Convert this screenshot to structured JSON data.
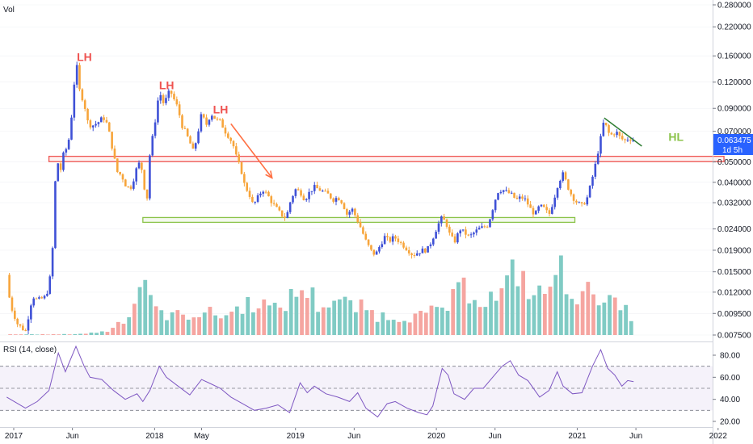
{
  "chart_data": {
    "type": "candlestick",
    "scale": "log",
    "vol_label": "Vol",
    "rsi_label": "RSI (14, close)",
    "last_price_badge": {
      "price": "0.063475",
      "countdown": "1d 5h",
      "color": "#2962ff"
    },
    "price_ticks": [
      "0.280000",
      "0.220000",
      "0.160000",
      "0.120000",
      "0.090000",
      "0.070000",
      "0.050000",
      "0.040000",
      "0.032000",
      "0.024000",
      "0.019000",
      "0.015000",
      "0.012000",
      "0.009500",
      "0.007500"
    ],
    "price_tick_values": [
      0.28,
      0.22,
      0.16,
      0.12,
      0.09,
      0.07,
      0.05,
      0.04,
      0.032,
      0.024,
      0.019,
      0.015,
      0.012,
      0.0095,
      0.0075
    ],
    "rsi_ticks": [
      "80.00",
      "60.00",
      "40.00",
      "20.00"
    ],
    "rsi_tick_values": [
      80,
      60,
      40,
      20
    ],
    "rsi_band": {
      "upper": 70,
      "lower": 30,
      "mid": 50
    },
    "time_labels": [
      {
        "label": "2017",
        "t": 0
      },
      {
        "label": "Jun",
        "t": 5
      },
      {
        "label": "2018",
        "t": 12
      },
      {
        "label": "May",
        "t": 16
      },
      {
        "label": "2019",
        "t": 24
      },
      {
        "label": "Jun",
        "t": 29
      },
      {
        "label": "2020",
        "t": 36
      },
      {
        "label": "Jun",
        "t": 41
      },
      {
        "label": "2021",
        "t": 48
      },
      {
        "label": "Jun",
        "t": 53
      },
      {
        "label": "2022",
        "t": 60
      }
    ],
    "price_path": [
      [
        -0.6,
        0.0145
      ],
      [
        -0.3,
        0.0105
      ],
      [
        0.3,
        0.0085
      ],
      [
        1.0,
        0.0078
      ],
      [
        1.6,
        0.0115
      ],
      [
        2.0,
        0.011
      ],
      [
        2.6,
        0.0113
      ],
      [
        3.0,
        0.0125
      ],
      [
        3.4,
        0.022
      ],
      [
        3.6,
        0.052
      ],
      [
        4.0,
        0.046
      ],
      [
        4.3,
        0.057
      ],
      [
        4.6,
        0.058
      ],
      [
        5.0,
        0.09
      ],
      [
        5.3,
        0.155
      ],
      [
        5.6,
        0.11
      ],
      [
        6.0,
        0.095
      ],
      [
        6.3,
        0.078
      ],
      [
        6.6,
        0.074
      ],
      [
        7.0,
        0.076
      ],
      [
        7.3,
        0.078
      ],
      [
        7.6,
        0.082
      ],
      [
        8.0,
        0.075
      ],
      [
        8.4,
        0.058
      ],
      [
        8.8,
        0.045
      ],
      [
        9.2,
        0.043
      ],
      [
        9.6,
        0.038
      ],
      [
        10.0,
        0.038
      ],
      [
        10.3,
        0.043
      ],
      [
        10.6,
        0.05
      ],
      [
        11.0,
        0.045
      ],
      [
        11.3,
        0.03
      ],
      [
        11.6,
        0.055
      ],
      [
        12.0,
        0.075
      ],
      [
        12.4,
        0.11
      ],
      [
        12.7,
        0.095
      ],
      [
        13.0,
        0.1
      ],
      [
        13.3,
        0.11
      ],
      [
        13.7,
        0.098
      ],
      [
        14.0,
        0.09
      ],
      [
        14.3,
        0.075
      ],
      [
        14.6,
        0.07
      ],
      [
        15.0,
        0.062
      ],
      [
        15.3,
        0.056
      ],
      [
        15.6,
        0.065
      ],
      [
        16.0,
        0.085
      ],
      [
        16.4,
        0.075
      ],
      [
        16.8,
        0.085
      ],
      [
        17.2,
        0.08
      ],
      [
        17.6,
        0.078
      ],
      [
        18.0,
        0.07
      ],
      [
        18.4,
        0.065
      ],
      [
        18.7,
        0.06
      ],
      [
        19.0,
        0.052
      ],
      [
        19.4,
        0.045
      ],
      [
        19.7,
        0.038
      ],
      [
        20.0,
        0.036
      ],
      [
        20.4,
        0.031
      ],
      [
        20.8,
        0.034
      ],
      [
        21.2,
        0.037
      ],
      [
        21.6,
        0.035
      ],
      [
        22.0,
        0.032
      ],
      [
        22.4,
        0.03
      ],
      [
        22.8,
        0.028
      ],
      [
        23.2,
        0.027
      ],
      [
        23.6,
        0.033
      ],
      [
        24.0,
        0.037
      ],
      [
        24.4,
        0.036
      ],
      [
        24.8,
        0.033
      ],
      [
        25.2,
        0.036
      ],
      [
        25.6,
        0.038
      ],
      [
        26.0,
        0.037
      ],
      [
        26.4,
        0.036
      ],
      [
        26.8,
        0.035
      ],
      [
        27.2,
        0.033
      ],
      [
        27.6,
        0.034
      ],
      [
        28.0,
        0.032
      ],
      [
        28.4,
        0.028
      ],
      [
        28.8,
        0.03
      ],
      [
        29.2,
        0.027
      ],
      [
        29.6,
        0.024
      ],
      [
        30.0,
        0.021
      ],
      [
        30.4,
        0.019
      ],
      [
        30.8,
        0.018
      ],
      [
        31.2,
        0.02
      ],
      [
        31.6,
        0.022
      ],
      [
        32.0,
        0.021
      ],
      [
        32.4,
        0.022
      ],
      [
        32.8,
        0.021
      ],
      [
        33.2,
        0.02
      ],
      [
        33.6,
        0.019
      ],
      [
        34.0,
        0.018
      ],
      [
        34.4,
        0.0185
      ],
      [
        34.8,
        0.019
      ],
      [
        35.2,
        0.019
      ],
      [
        35.6,
        0.021
      ],
      [
        36.0,
        0.024
      ],
      [
        36.4,
        0.027
      ],
      [
        36.8,
        0.026
      ],
      [
        37.2,
        0.022
      ],
      [
        37.6,
        0.021
      ],
      [
        38.0,
        0.024
      ],
      [
        38.4,
        0.023
      ],
      [
        38.8,
        0.022
      ],
      [
        39.2,
        0.023
      ],
      [
        39.6,
        0.024
      ],
      [
        40.0,
        0.0245
      ],
      [
        40.4,
        0.025
      ],
      [
        40.8,
        0.03
      ],
      [
        41.2,
        0.036
      ],
      [
        41.6,
        0.037
      ],
      [
        42.0,
        0.036
      ],
      [
        42.4,
        0.035
      ],
      [
        42.8,
        0.033
      ],
      [
        43.2,
        0.034
      ],
      [
        43.6,
        0.033
      ],
      [
        44.0,
        0.03
      ],
      [
        44.4,
        0.028
      ],
      [
        44.8,
        0.031
      ],
      [
        45.2,
        0.03
      ],
      [
        45.6,
        0.028
      ],
      [
        46.0,
        0.033
      ],
      [
        46.4,
        0.04
      ],
      [
        46.8,
        0.044
      ],
      [
        47.2,
        0.038
      ],
      [
        47.6,
        0.034
      ],
      [
        48.0,
        0.032
      ],
      [
        48.4,
        0.031
      ],
      [
        48.8,
        0.033
      ],
      [
        49.2,
        0.04
      ],
      [
        49.6,
        0.05
      ],
      [
        50.0,
        0.065
      ],
      [
        50.3,
        0.08
      ],
      [
        50.6,
        0.069
      ],
      [
        51.0,
        0.067
      ],
      [
        51.3,
        0.07
      ],
      [
        51.6,
        0.066
      ],
      [
        52.0,
        0.063
      ],
      [
        52.4,
        0.065
      ],
      [
        52.8,
        0.0635
      ]
    ],
    "volume_path": [
      [
        -0.3,
        0.01
      ],
      [
        4.0,
        0.01
      ],
      [
        6.0,
        0.02
      ],
      [
        8.0,
        0.06
      ],
      [
        9.0,
        0.2
      ],
      [
        10.0,
        0.35
      ],
      [
        11.2,
        1.0
      ],
      [
        12.0,
        0.35
      ],
      [
        14.0,
        0.3
      ],
      [
        16.0,
        0.35
      ],
      [
        18.0,
        0.3
      ],
      [
        19.5,
        0.45
      ],
      [
        21.0,
        0.55
      ],
      [
        22.0,
        0.35
      ],
      [
        23.5,
        0.55
      ],
      [
        24.8,
        0.75
      ],
      [
        26.0,
        0.45
      ],
      [
        27.5,
        0.55
      ],
      [
        28.5,
        0.45
      ],
      [
        30.0,
        0.4
      ],
      [
        31.0,
        0.3
      ],
      [
        33.0,
        0.28
      ],
      [
        35.0,
        0.3
      ],
      [
        37.0,
        0.45
      ],
      [
        38.5,
        0.75
      ],
      [
        40.0,
        0.55
      ],
      [
        41.5,
        0.6
      ],
      [
        42.3,
        0.85
      ],
      [
        42.9,
        1.05
      ],
      [
        43.4,
        0.85
      ],
      [
        44.5,
        0.55
      ],
      [
        45.5,
        0.75
      ],
      [
        46.8,
        1.0
      ],
      [
        47.4,
        0.75
      ],
      [
        48.5,
        0.55
      ],
      [
        49.5,
        0.75
      ],
      [
        50.5,
        0.55
      ],
      [
        51.5,
        0.4
      ],
      [
        52.8,
        0.3
      ]
    ],
    "rsi_values": [
      [
        -0.6,
        42
      ],
      [
        1.0,
        32
      ],
      [
        2.0,
        38
      ],
      [
        3.0,
        48
      ],
      [
        3.8,
        82
      ],
      [
        4.4,
        65
      ],
      [
        5.3,
        88
      ],
      [
        6.0,
        70
      ],
      [
        6.5,
        60
      ],
      [
        7.5,
        58
      ],
      [
        8.5,
        48
      ],
      [
        9.5,
        40
      ],
      [
        10.5,
        45
      ],
      [
        11.0,
        38
      ],
      [
        11.6,
        48
      ],
      [
        12.4,
        70
      ],
      [
        13.0,
        60
      ],
      [
        14.0,
        52
      ],
      [
        15.0,
        44
      ],
      [
        16.0,
        58
      ],
      [
        16.8,
        54
      ],
      [
        17.6,
        50
      ],
      [
        18.5,
        42
      ],
      [
        19.5,
        36
      ],
      [
        20.5,
        30
      ],
      [
        21.5,
        32
      ],
      [
        22.5,
        35
      ],
      [
        23.5,
        28
      ],
      [
        24.4,
        55
      ],
      [
        25.0,
        46
      ],
      [
        25.6,
        52
      ],
      [
        26.6,
        45
      ],
      [
        27.6,
        42
      ],
      [
        28.6,
        38
      ],
      [
        29.3,
        46
      ],
      [
        30.0,
        32
      ],
      [
        31.0,
        24
      ],
      [
        31.8,
        36
      ],
      [
        32.5,
        38
      ],
      [
        33.5,
        32
      ],
      [
        34.5,
        28
      ],
      [
        35.2,
        26
      ],
      [
        35.7,
        34
      ],
      [
        36.5,
        68
      ],
      [
        37.0,
        62
      ],
      [
        37.5,
        45
      ],
      [
        38.4,
        40
      ],
      [
        39.2,
        50
      ],
      [
        40.0,
        50
      ],
      [
        40.8,
        60
      ],
      [
        41.6,
        70
      ],
      [
        42.3,
        75
      ],
      [
        43.0,
        62
      ],
      [
        43.8,
        57
      ],
      [
        44.8,
        42
      ],
      [
        45.6,
        48
      ],
      [
        46.3,
        65
      ],
      [
        46.8,
        52
      ],
      [
        47.6,
        45
      ],
      [
        48.4,
        46
      ],
      [
        49.3,
        70
      ],
      [
        50.0,
        85
      ],
      [
        50.6,
        68
      ],
      [
        51.2,
        62
      ],
      [
        51.8,
        52
      ],
      [
        52.3,
        57
      ],
      [
        52.8,
        56
      ]
    ],
    "annotations": [
      {
        "text": "LH",
        "color": "#ef5350"
      },
      {
        "text": "LH",
        "color": "#ef5350"
      },
      {
        "text": "LH",
        "color": "#ef5350"
      },
      {
        "text": "HL",
        "color": "#8bc34a"
      }
    ],
    "resistance_zone": {
      "t1": 3.0,
      "t2": 60.5,
      "p_top": 0.0532,
      "p_bot": 0.0502,
      "color": "#ef5350"
    },
    "support_zone": {
      "t1": 11.0,
      "t2": 47.8,
      "p_top": 0.0272,
      "p_bot": 0.0258,
      "color": "#8bc34a"
    },
    "trend_arrow": {
      "t1": 18.5,
      "p1": 0.076,
      "t2": 22.0,
      "p2": 0.042,
      "color": "#ff7043"
    },
    "trend_line": {
      "t1": 50.3,
      "p1": 0.081,
      "t2": 53.5,
      "p2": 0.0595,
      "color": "#2e7d32"
    },
    "colors": {
      "up": "#3f51d6",
      "down": "#f7a53b",
      "vol_up": "#80cbc4",
      "vol_down": "#f5a5a0",
      "rsi_line": "#7e57c2",
      "rsi_band": "#7e57c2",
      "axis_text": "#131722",
      "grid": "#e0e3eb"
    }
  }
}
